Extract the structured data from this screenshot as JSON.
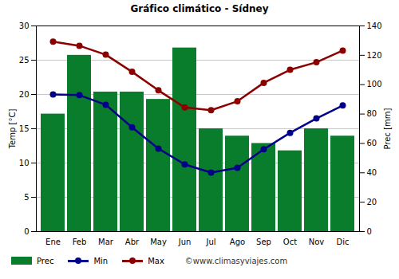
{
  "chart_data": {
    "type": "bar",
    "title": "Gráfico climático - Sídney",
    "categories": [
      "Ene",
      "Feb",
      "Mar",
      "Abr",
      "May",
      "Jun",
      "Jul",
      "Ago",
      "Sep",
      "Oct",
      "Nov",
      "Dic"
    ],
    "series": [
      {
        "name": "Prec",
        "type": "bar",
        "axis": "y2",
        "color": "#0a7d2c",
        "values": [
          80,
          120,
          95,
          95,
          90,
          125,
          70,
          65,
          60,
          55,
          70,
          65
        ]
      },
      {
        "name": "Min",
        "type": "line",
        "marker": "circle",
        "line_style": "solid",
        "color": "#00008b",
        "values": [
          20.0,
          19.9,
          18.5,
          15.2,
          12.1,
          9.8,
          8.6,
          9.3,
          12.0,
          14.4,
          16.5,
          18.4
        ]
      },
      {
        "name": "Max",
        "type": "line",
        "marker": "circle",
        "line_style": "solid",
        "color": "#8b0000",
        "values": [
          27.7,
          27.1,
          25.8,
          23.3,
          20.6,
          18.1,
          17.7,
          19.0,
          21.7,
          23.6,
          24.7,
          26.4
        ]
      }
    ],
    "y_label": "Temp [°C]",
    "y2_label": "Prec [mm]",
    "ylim": [
      0,
      30
    ],
    "yticks": [
      0,
      5,
      10,
      15,
      20,
      25,
      30
    ],
    "y2lim": [
      0,
      140
    ],
    "y2ticks": [
      0,
      20,
      40,
      60,
      80,
      100,
      120,
      140
    ],
    "grid": true,
    "legend": "bottom",
    "annotations": [
      "©www.climasyviajes.com"
    ]
  }
}
